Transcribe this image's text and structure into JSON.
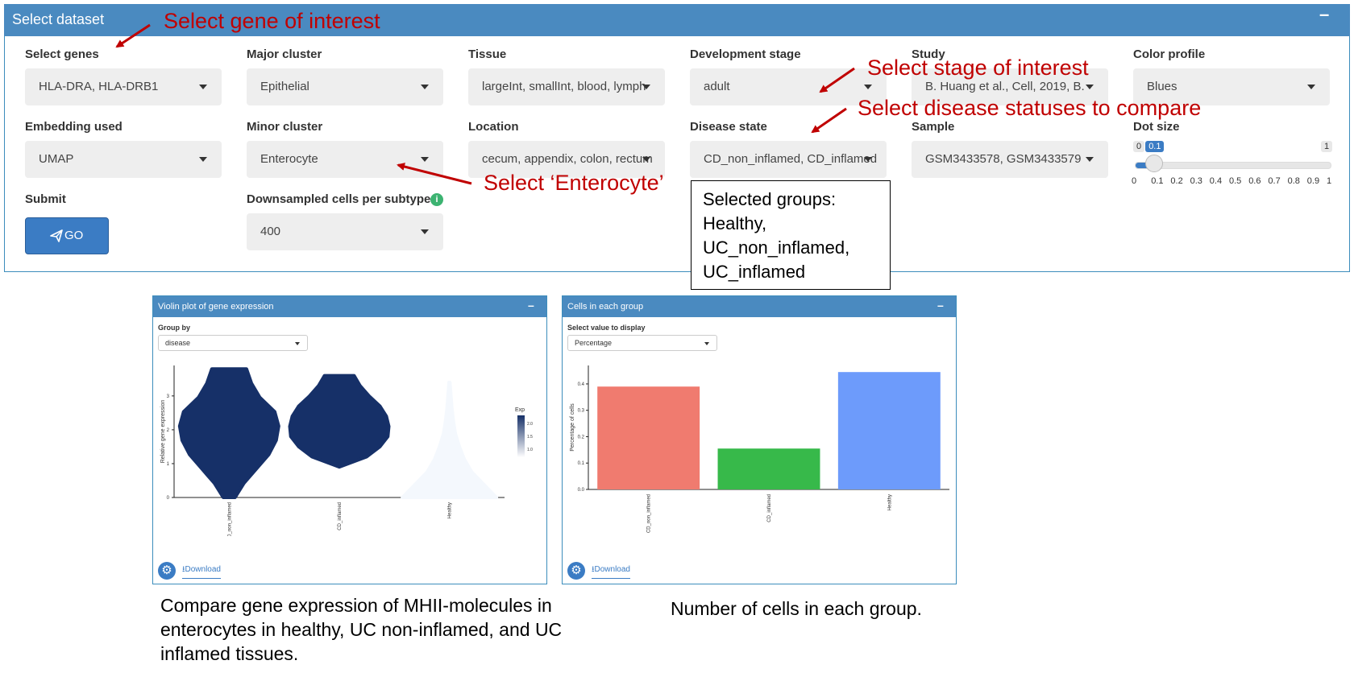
{
  "panel": {
    "title": "Select dataset",
    "collapse_symbol": "–"
  },
  "fields": {
    "select_genes": {
      "label": "Select genes",
      "value": "HLA-DRA, HLA-DRB1"
    },
    "major_cluster": {
      "label": "Major cluster",
      "value": "Epithelial"
    },
    "tissue": {
      "label": "Tissue",
      "value": "largeInt, smallInt, blood, lymph"
    },
    "development_stage": {
      "label": "Development stage",
      "value": "adult"
    },
    "study": {
      "label": "Study",
      "value": "B. Huang et al., Cell, 2019, B."
    },
    "color_profile": {
      "label": "Color profile",
      "value": "Blues"
    },
    "embedding": {
      "label": "Embedding used",
      "value": "UMAP"
    },
    "minor_cluster": {
      "label": "Minor cluster",
      "value": "Enterocyte"
    },
    "location": {
      "label": "Location",
      "value": "cecum, appendix, colon, rectum"
    },
    "disease_state": {
      "label": "Disease state",
      "value": "CD_non_inflamed, CD_inflamed"
    },
    "sample": {
      "label": "Sample",
      "value": "GSM3433578, GSM3433579"
    },
    "dot_size": {
      "label": "Dot size",
      "min": "0",
      "max": "1",
      "value": "0.1",
      "value_num": 0.1,
      "ticks": [
        "0",
        "0.1",
        "0.2",
        "0.3",
        "0.4",
        "0.5",
        "0.6",
        "0.7",
        "0.8",
        "0.9",
        "1"
      ]
    },
    "submit": {
      "label": "Submit",
      "button": "GO"
    },
    "downsampled": {
      "label": "Downsampled cells per subtype",
      "value": "400",
      "info_icon": "i"
    }
  },
  "annotations": {
    "gene": "Select gene of interest",
    "stage": "Select stage of interest",
    "disease": "Select disease statuses to compare",
    "enterocyte": "Select ‘Enterocyte’",
    "selected_groups": [
      "Selected groups:",
      "Healthy,",
      "UC_non_inflamed,",
      "UC_inflamed"
    ]
  },
  "violin_panel": {
    "title": "Violin plot of gene expression",
    "group_by_label": "Group by",
    "group_by_value": "disease",
    "download_label": "Download"
  },
  "cells_panel": {
    "title": "Cells in each group",
    "select_label": "Select value to display",
    "select_value": "Percentage",
    "download_label": "Download"
  },
  "chart_data": [
    {
      "type": "violin",
      "ylabel": "Relative gene expression",
      "categories": [
        "CD_non_inflamed",
        "CD_inflamed",
        "Healthy"
      ],
      "yticks": [
        "0",
        "1",
        "2",
        "3"
      ],
      "ylim": [
        0,
        3.9
      ],
      "legend": {
        "title": "Exp",
        "ticks": [
          "2.0",
          "1.5",
          "1.0"
        ]
      },
      "series": [
        {
          "category": "CD_non_inflamed",
          "min": 0.0,
          "max": 3.8,
          "color": "#163068"
        },
        {
          "category": "CD_inflamed",
          "min": 0.9,
          "max": 3.6,
          "color": "#163068"
        },
        {
          "category": "Healthy",
          "min": 0.0,
          "max": 3.4,
          "color": "#f4f8fd"
        }
      ]
    },
    {
      "type": "bar",
      "ylabel": "Percentage of cells",
      "categories": [
        "CD_non_inflamed",
        "CD_inflamed",
        "Healthy"
      ],
      "values": [
        0.39,
        0.155,
        0.445
      ],
      "colors": [
        "#f07b6f",
        "#37b94a",
        "#6d9bfb"
      ],
      "yticks": [
        "0.0",
        "0.1",
        "0.2",
        "0.3",
        "0.4"
      ],
      "ylim": [
        0,
        0.47
      ]
    }
  ],
  "captions": {
    "violin": [
      "Compare gene expression of MHII-molecules in",
      "enterocytes in healthy, UC non-inflamed, and UC",
      "inflamed tissues."
    ],
    "cells": "Number of cells in each group."
  }
}
